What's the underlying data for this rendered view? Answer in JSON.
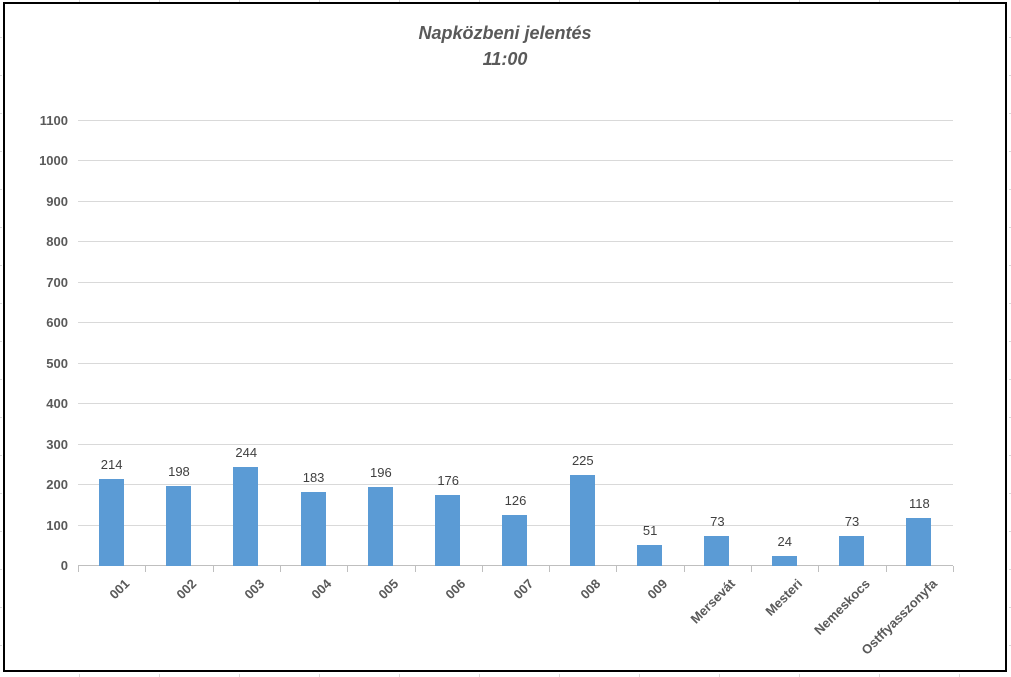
{
  "chart_data": {
    "type": "bar",
    "title": "Napközbeni jelentés",
    "subtitle": "11:00",
    "categories": [
      "001",
      "002",
      "003",
      "004",
      "005",
      "006",
      "007",
      "008",
      "009",
      "Mersevát",
      "Mesteri",
      "Nemeskocs",
      "Ostffyasszonyfa"
    ],
    "values": [
      214,
      198,
      244,
      183,
      196,
      176,
      126,
      225,
      51,
      73,
      24,
      73,
      118
    ],
    "data_labels_shown": true,
    "xlabel": "",
    "ylabel": "",
    "ylim": [
      0,
      1100
    ],
    "ytick_step": 100,
    "grid": true,
    "legend": "none",
    "bar_color": "#5B9BD5",
    "gridline_color": "#D9D9D9",
    "axis_line_color": "#BFBFBF",
    "tick_label_color": "#595959",
    "data_label_color": "#404040",
    "title_color": "#595959",
    "chart_border_color": "#000000",
    "background_color": "#FFFFFF"
  }
}
